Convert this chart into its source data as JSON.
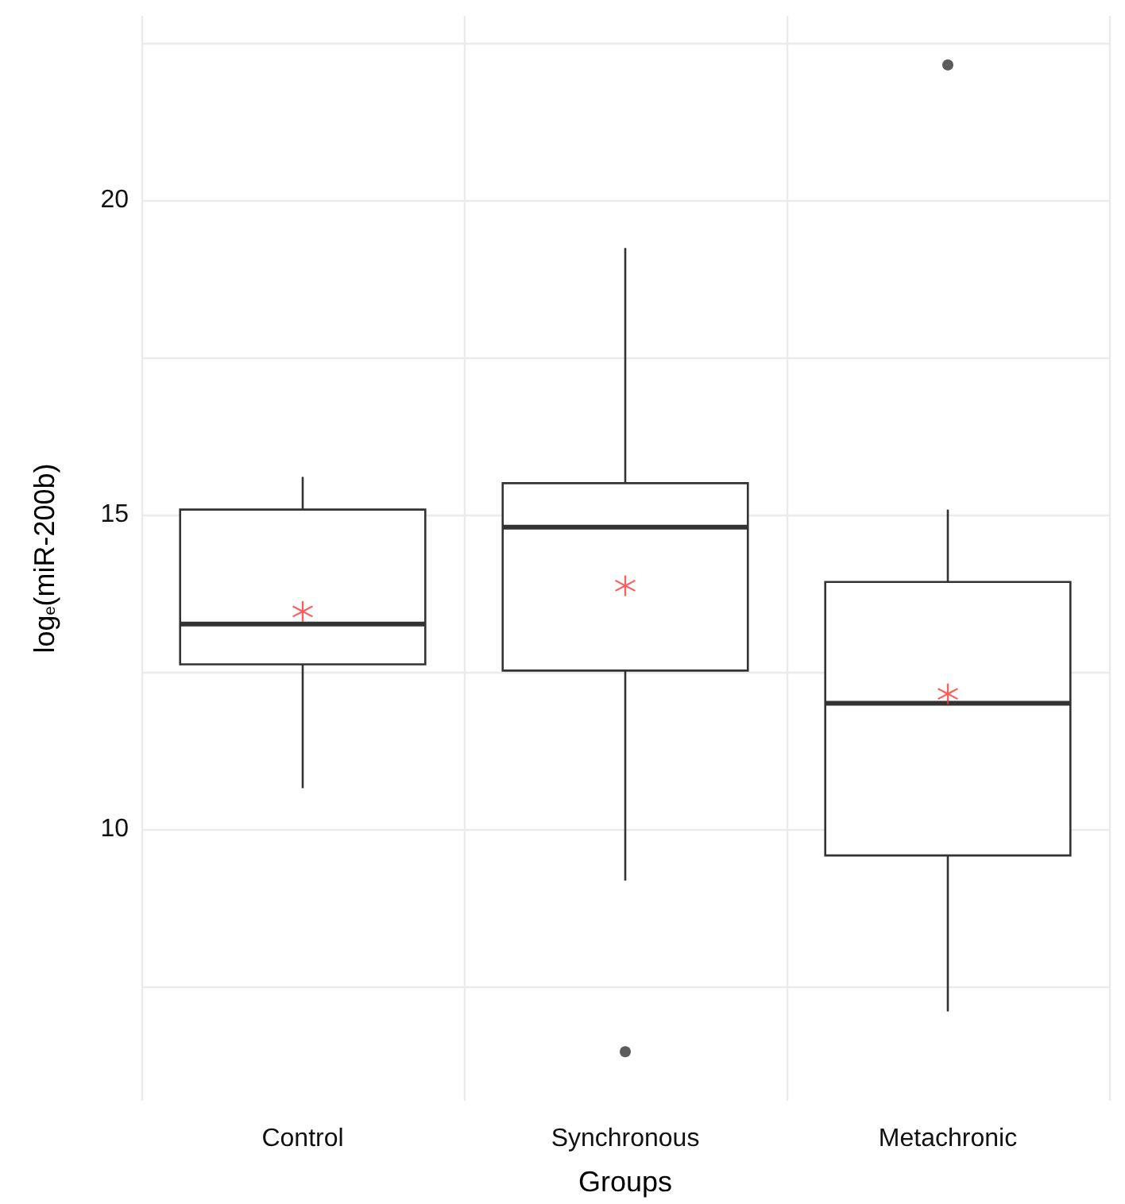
{
  "chart_data": {
    "type": "box",
    "xlabel": "Groups",
    "ylabel": "log$_{e}$(miR-200b)",
    "categories": [
      "Control",
      "Synchronous",
      "Metachronic"
    ],
    "series": [
      {
        "color": "#333333",
        "boxes": [
          {
            "low": 10.65,
            "q1": 12.62,
            "median": 13.26,
            "q3": 15.08,
            "high": 15.6
          },
          {
            "low": 9.18,
            "q1": 12.52,
            "median": 14.8,
            "q3": 15.5,
            "high": 19.24,
            "outliers": [
              6.46
            ]
          },
          {
            "low": 7.1,
            "q1": 9.58,
            "median": 12.0,
            "q3": 13.93,
            "high": 15.08,
            "outliers": [
              22.15
            ]
          }
        ]
      },
      {
        "type": "scatter",
        "x": [
          "Control",
          "Synchronous",
          "Metachronic"
        ],
        "values": [
          13.46,
          13.87,
          12.15
        ],
        "color": "#ff3333",
        "marker": "star"
      }
    ],
    "ylim": [
      5.68,
      22.93
    ],
    "yticks": [
      {
        "value": 7.5,
        "label": null
      },
      10,
      {
        "value": 12.5,
        "label": null
      },
      15,
      {
        "value": 17.5,
        "label": null
      },
      20,
      {
        "value": 22.5,
        "label": null
      }
    ],
    "grid": true
  }
}
